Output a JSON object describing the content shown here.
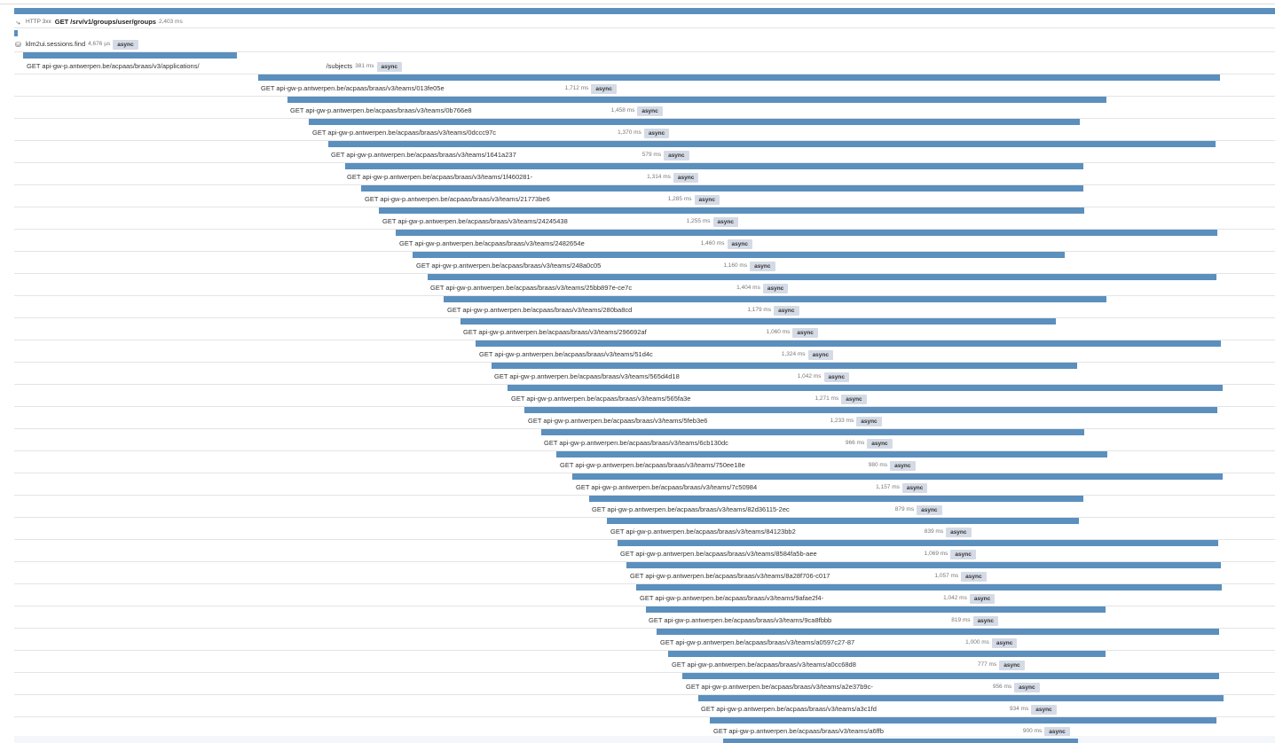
{
  "colors": {
    "bar": "#5b8fbe",
    "badge_bg": "#d4dbe6",
    "row_divider": "#e4e4e4"
  },
  "root": {
    "icon": "http-icon",
    "status": "HTTP 3xx",
    "name": "GET /srv/v1/groups/user/groups",
    "duration": "2,403 ms"
  },
  "session": {
    "icon": "database-icon",
    "name": "klm2ui.sessions.find",
    "duration": "4,676 µs",
    "badge": "async"
  },
  "applications": {
    "name": "GET api-gw-p.antwerpen.be/acpaas/braas/v3/applications/",
    "suffix": "/subjects",
    "duration": "381 ms",
    "badge": "async"
  },
  "teams": [
    {
      "name": "GET api-gw-p.antwerpen.be/acpaas/braas/v3/teams/013fe05e",
      "duration": "1,712 ms",
      "badge": "async"
    },
    {
      "name": "GET api-gw-p.antwerpen.be/acpaas/braas/v3/teams/0b766e8",
      "duration": "1,458 ms",
      "badge": "async"
    },
    {
      "name": "GET api-gw-p.antwerpen.be/acpaas/braas/v3/teams/0dccc97c",
      "duration": "1,370 ms",
      "badge": "async"
    },
    {
      "name": "GET api-gw-p.antwerpen.be/acpaas/braas/v3/teams/1641a237",
      "duration": "579 ms",
      "badge": "async"
    },
    {
      "name": "GET api-gw-p.antwerpen.be/acpaas/braas/v3/teams/1f460281-",
      "duration": "1,314 ms",
      "badge": "async"
    },
    {
      "name": "GET api-gw-p.antwerpen.be/acpaas/braas/v3/teams/21773be6",
      "duration": "1,285 ms",
      "badge": "async"
    },
    {
      "name": "GET api-gw-p.antwerpen.be/acpaas/braas/v3/teams/24245438",
      "duration": "1,255 ms",
      "badge": "async"
    },
    {
      "name": "GET api-gw-p.antwerpen.be/acpaas/braas/v3/teams/2482654e",
      "duration": "1,460 ms",
      "badge": "async"
    },
    {
      "name": "GET api-gw-p.antwerpen.be/acpaas/braas/v3/teams/248a0c05",
      "duration": "1,160 ms",
      "badge": "async"
    },
    {
      "name": "GET api-gw-p.antwerpen.be/acpaas/braas/v3/teams/25bb897e-ce7c",
      "duration": "1,404 ms",
      "badge": "async"
    },
    {
      "name": "GET api-gw-p.antwerpen.be/acpaas/braas/v3/teams/280ba8cd",
      "duration": "1,179 ms",
      "badge": "async"
    },
    {
      "name": "GET api-gw-p.antwerpen.be/acpaas/braas/v3/teams/296692af",
      "duration": "1,060 ms",
      "badge": "async"
    },
    {
      "name": "GET api-gw-p.antwerpen.be/acpaas/braas/v3/teams/51d4c",
      "duration": "1,324 ms",
      "badge": "async"
    },
    {
      "name": "GET api-gw-p.antwerpen.be/acpaas/braas/v3/teams/565d4d18",
      "duration": "1,042 ms",
      "badge": "async"
    },
    {
      "name": "GET api-gw-p.antwerpen.be/acpaas/braas/v3/teams/565fa3e",
      "duration": "1,271 ms",
      "badge": "async"
    },
    {
      "name": "GET api-gw-p.antwerpen.be/acpaas/braas/v3/teams/5feb3e6",
      "duration": "1,233 ms",
      "badge": "async"
    },
    {
      "name": "GET api-gw-p.antwerpen.be/acpaas/braas/v3/teams/6cb130dc",
      "duration": "966 ms",
      "badge": "async"
    },
    {
      "name": "GET api-gw-p.antwerpen.be/acpaas/braas/v3/teams/750ee18e",
      "duration": "980 ms",
      "badge": "async"
    },
    {
      "name": "GET api-gw-p.antwerpen.be/acpaas/braas/v3/teams/7c50984",
      "duration": "1,157 ms",
      "badge": "async"
    },
    {
      "name": "GET api-gw-p.antwerpen.be/acpaas/braas/v3/teams/82d36115-2ec",
      "duration": "879 ms",
      "badge": "async"
    },
    {
      "name": "GET api-gw-p.antwerpen.be/acpaas/braas/v3/teams/84123bb2",
      "duration": "839 ms",
      "badge": "async"
    },
    {
      "name": "GET api-gw-p.antwerpen.be/acpaas/braas/v3/teams/8584fa5b-aee",
      "duration": "1,069 ms",
      "badge": "async"
    },
    {
      "name": "GET api-gw-p.antwerpen.be/acpaas/braas/v3/teams/8a28f706-c017",
      "duration": "1,057 ms",
      "badge": "async"
    },
    {
      "name": "GET api-gw-p.antwerpen.be/acpaas/braas/v3/teams/9afae2f4-",
      "duration": "1,042 ms",
      "badge": "async"
    },
    {
      "name": "GET api-gw-p.antwerpen.be/acpaas/braas/v3/teams/9ca8fbbb",
      "duration": "819 ms",
      "badge": "async"
    },
    {
      "name": "GET api-gw-p.antwerpen.be/acpaas/braas/v3/teams/a0597c27-87",
      "duration": "1,000 ms",
      "badge": "async"
    },
    {
      "name": "GET api-gw-p.antwerpen.be/acpaas/braas/v3/teams/a0cc68d8",
      "duration": "777 ms",
      "badge": "async"
    },
    {
      "name": "GET api-gw-p.antwerpen.be/acpaas/braas/v3/teams/a2e37b9c-",
      "duration": "956 ms",
      "badge": "async"
    },
    {
      "name": "GET api-gw-p.antwerpen.be/acpaas/braas/v3/teams/a3c1fd",
      "duration": "934 ms",
      "badge": "async"
    },
    {
      "name": "GET api-gw-p.antwerpen.be/acpaas/braas/v3/teams/a6ffb",
      "duration": "900 ms",
      "badge": "async"
    }
  ]
}
